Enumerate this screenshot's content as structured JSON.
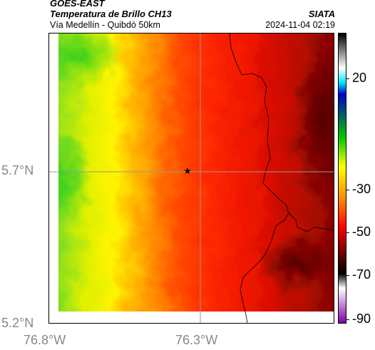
{
  "header": {
    "source": "GOES-EAST",
    "product": "Temperatura de Brillo CH13",
    "region": "Vía Medellín - Quibdó 50km",
    "agency": "SIATA",
    "datetime": "2024-11-04 02:19"
  },
  "map": {
    "lat_labels": [
      "5.7°N",
      "5.2°N"
    ],
    "lon_labels": [
      "76.8°W",
      "76.3°W"
    ],
    "marker": "star-marker"
  },
  "colorbar": {
    "tick_labels": [
      "20",
      "-30",
      "-50",
      "-70",
      "-90"
    ],
    "colors": [
      "#000000",
      "#ffffff",
      "#00e5ff",
      "#0000c8",
      "#00c800",
      "#ffff00",
      "#ff7f00",
      "#ff0000",
      "#5a0000",
      "#000000",
      "#ffffff",
      "#8000a0"
    ]
  },
  "colors": {
    "gridline": "#9a9a9a",
    "border": "#000000"
  }
}
